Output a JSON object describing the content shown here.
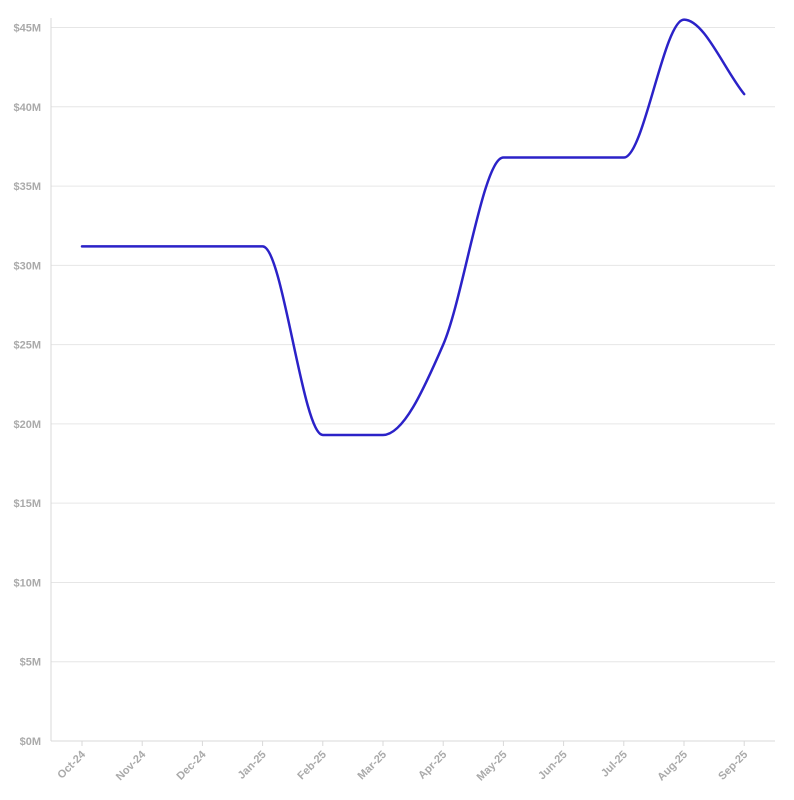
{
  "chart_data": {
    "type": "line",
    "title": "",
    "xlabel": "",
    "ylabel": "",
    "categories": [
      "Oct-24",
      "Nov-24",
      "Dec-24",
      "Jan-25",
      "Feb-25",
      "Mar-25",
      "Apr-25",
      "May-25",
      "Jun-25",
      "Jul-25",
      "Aug-25",
      "Sep-25"
    ],
    "series": [
      {
        "values": [
          31.2,
          31.2,
          31.2,
          31.2,
          19.3,
          19.3,
          25.0,
          36.8,
          36.8,
          36.8,
          45.5,
          40.8
        ]
      }
    ],
    "y_ticks": [
      "$0M",
      "$5M",
      "$10M",
      "$15M",
      "$20M",
      "$25M",
      "$30M",
      "$35M",
      "$40M",
      "$45M"
    ],
    "ylim": [
      0,
      45.6
    ],
    "grid": true,
    "legend": "none",
    "colors": {
      "line": "#2b22c8",
      "grid": "#e6e6e6",
      "axis": "#d9d9d9",
      "tick_text": "#aaaaaa"
    }
  }
}
